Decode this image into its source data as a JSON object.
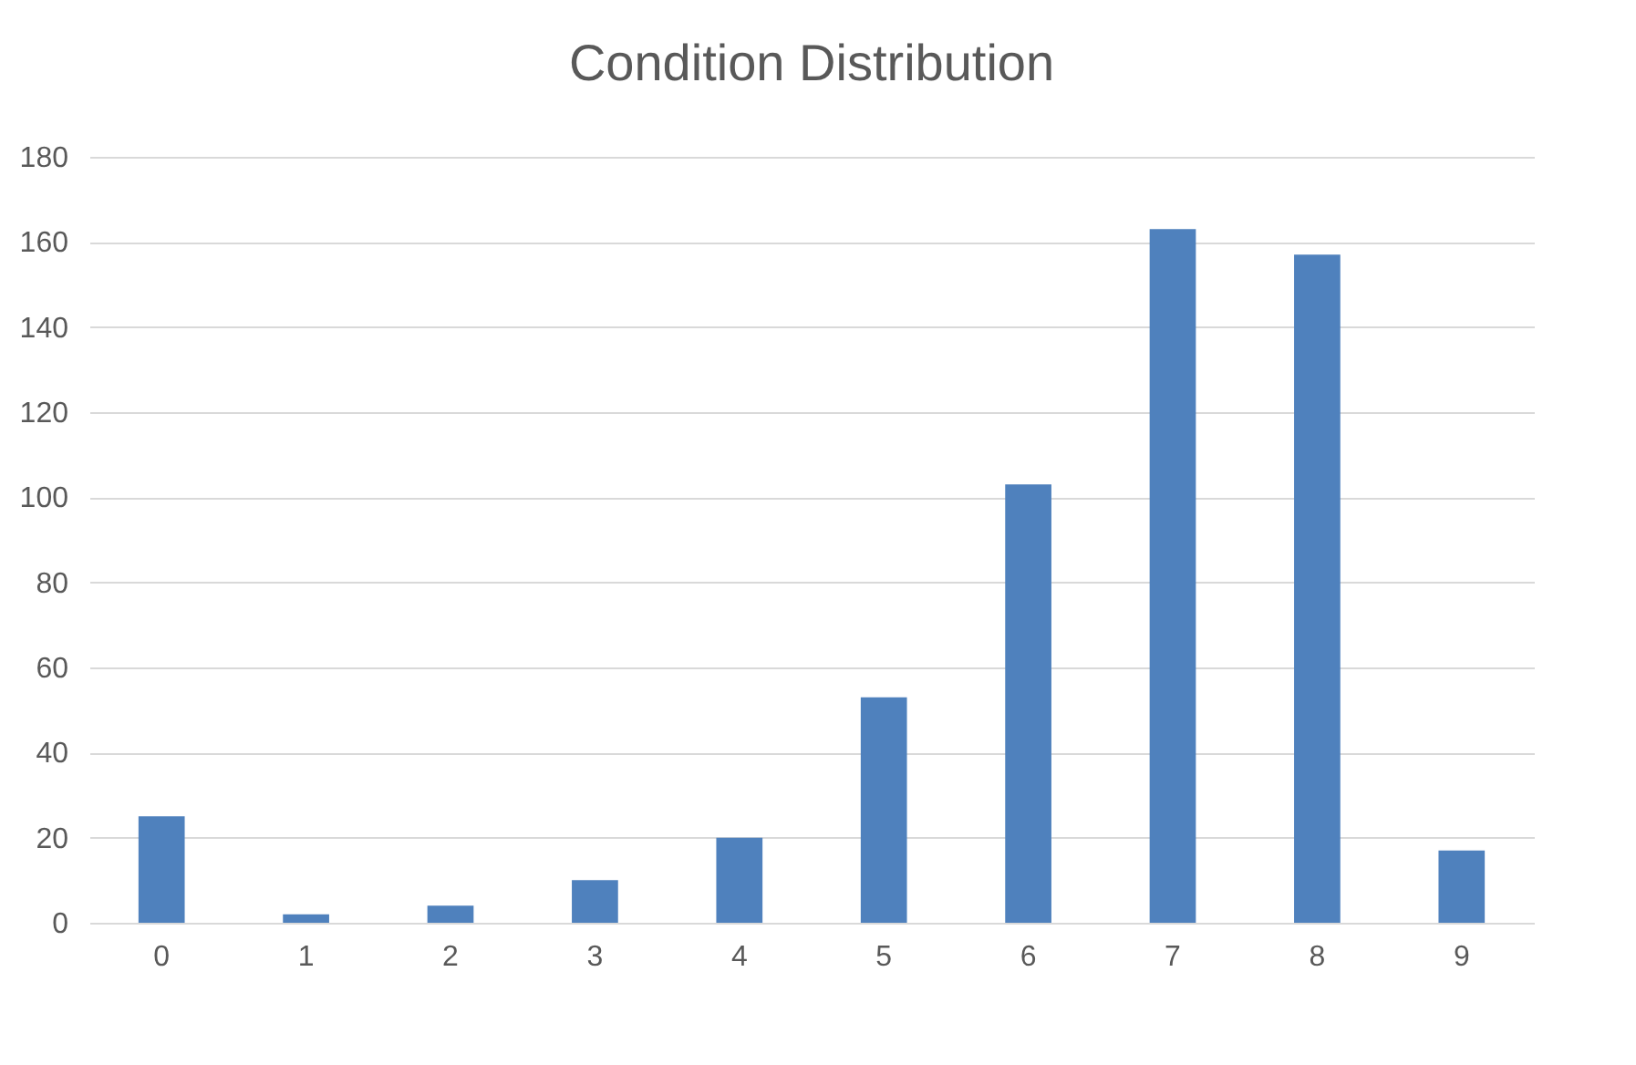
{
  "chart_data": {
    "type": "bar",
    "title": "Condition Distribution",
    "categories": [
      "0",
      "1",
      "2",
      "3",
      "4",
      "5",
      "6",
      "7",
      "8",
      "9"
    ],
    "values": [
      25,
      2,
      4,
      10,
      20,
      53,
      103,
      163,
      157,
      17
    ],
    "color": "#4f81bd",
    "ylim": [
      0,
      180
    ],
    "yticks": [
      0,
      20,
      40,
      60,
      80,
      100,
      120,
      140,
      160,
      180
    ],
    "grid": "y"
  }
}
